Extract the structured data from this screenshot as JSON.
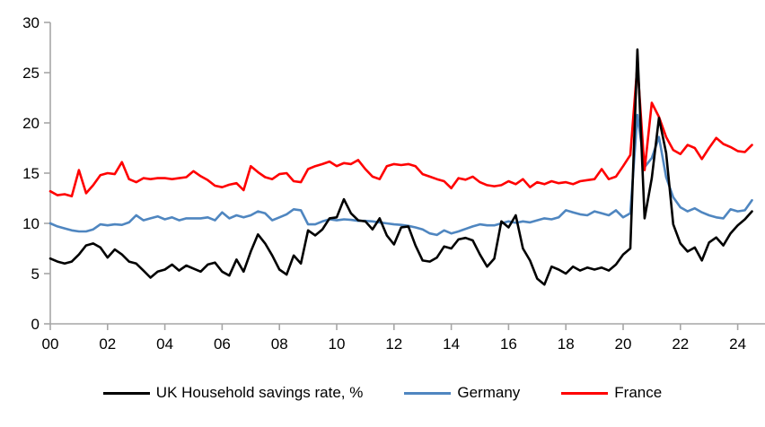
{
  "chart_data": {
    "type": "line",
    "title": "",
    "xlabel": "",
    "ylabel": "",
    "grid": false,
    "legend_position": "bottom-center",
    "background_color": "#ffffff",
    "axis_color": "#a6a6a6",
    "tick_label_color": "#000000",
    "x_start_year": 2000,
    "x_step_years": 0.25,
    "x_axis_tick_years": [
      0,
      2,
      4,
      6,
      8,
      10,
      12,
      14,
      16,
      18,
      20,
      22,
      24
    ],
    "x_tick_labels": [
      "00",
      "02",
      "04",
      "06",
      "08",
      "10",
      "12",
      "14",
      "16",
      "18",
      "20",
      "22",
      "24"
    ],
    "y_ticks": [
      0,
      5,
      10,
      15,
      20,
      25,
      30
    ],
    "ylim": [
      0,
      30
    ],
    "xlim_years": [
      0,
      25
    ],
    "series": [
      {
        "key": "uk",
        "name": "UK Household savings rate, %",
        "color": "#000000",
        "values": [
          6.5,
          6.2,
          6.0,
          6.2,
          6.9,
          7.8,
          8.0,
          7.6,
          6.6,
          7.4,
          6.9,
          6.2,
          6.0,
          5.3,
          4.6,
          5.2,
          5.4,
          5.9,
          5.3,
          5.8,
          5.5,
          5.2,
          5.9,
          6.1,
          5.2,
          4.8,
          6.4,
          5.2,
          7.2,
          8.9,
          8.0,
          6.8,
          5.4,
          4.9,
          6.8,
          6.0,
          9.3,
          8.8,
          9.4,
          10.5,
          10.6,
          12.4,
          11.0,
          10.3,
          10.2,
          9.4,
          10.5,
          8.8,
          7.9,
          9.6,
          9.7,
          7.8,
          6.3,
          6.2,
          6.6,
          7.7,
          7.5,
          8.4,
          8.55,
          8.3,
          6.9,
          5.7,
          6.5,
          10.2,
          9.6,
          10.8,
          7.5,
          6.3,
          4.5,
          3.9,
          5.7,
          5.4,
          5.0,
          5.7,
          5.3,
          5.6,
          5.4,
          5.6,
          5.3,
          5.9,
          6.9,
          7.5,
          27.3,
          10.5,
          14.5,
          20.5,
          17.0,
          9.9,
          8.0,
          7.2,
          7.6,
          6.3,
          8.1,
          8.6,
          7.8,
          9.0,
          9.8,
          10.4,
          11.2
        ]
      },
      {
        "key": "germany",
        "name": "Germany",
        "color": "#4f86c0",
        "values": [
          10.0,
          9.7,
          9.5,
          9.3,
          9.2,
          9.2,
          9.4,
          9.9,
          9.8,
          9.9,
          9.85,
          10.1,
          10.8,
          10.3,
          10.5,
          10.7,
          10.4,
          10.6,
          10.3,
          10.5,
          10.5,
          10.5,
          10.6,
          10.3,
          11.1,
          10.5,
          10.8,
          10.6,
          10.8,
          11.2,
          11.0,
          10.3,
          10.6,
          10.9,
          11.4,
          11.3,
          9.9,
          9.9,
          10.2,
          10.4,
          10.3,
          10.4,
          10.35,
          10.25,
          10.25,
          10.2,
          10.1,
          10.0,
          9.9,
          9.85,
          9.75,
          9.6,
          9.4,
          9.0,
          8.85,
          9.3,
          9.0,
          9.2,
          9.45,
          9.7,
          9.9,
          9.8,
          9.8,
          10.0,
          10.2,
          10.05,
          10.2,
          10.1,
          10.3,
          10.5,
          10.4,
          10.6,
          11.3,
          11.1,
          10.9,
          10.8,
          11.2,
          11.0,
          10.8,
          11.3,
          10.6,
          11.0,
          20.8,
          15.6,
          16.5,
          18.6,
          14.6,
          12.6,
          11.6,
          11.2,
          11.5,
          11.1,
          10.8,
          10.6,
          10.5,
          11.4,
          11.2,
          11.3,
          12.3
        ]
      },
      {
        "key": "france",
        "name": "France",
        "color": "#ff0000",
        "values": [
          13.2,
          12.8,
          12.9,
          12.7,
          15.3,
          13.0,
          13.8,
          14.8,
          15.0,
          14.9,
          16.1,
          14.4,
          14.1,
          14.5,
          14.4,
          14.5,
          14.5,
          14.4,
          14.5,
          14.6,
          15.2,
          14.7,
          14.3,
          13.75,
          13.6,
          13.85,
          14.0,
          13.3,
          15.7,
          15.1,
          14.6,
          14.4,
          14.9,
          15.0,
          14.2,
          14.1,
          15.4,
          15.7,
          15.9,
          16.15,
          15.7,
          16.0,
          15.9,
          16.3,
          15.4,
          14.65,
          14.4,
          15.7,
          15.9,
          15.8,
          15.9,
          15.7,
          14.9,
          14.65,
          14.4,
          14.2,
          13.5,
          14.5,
          14.35,
          14.65,
          14.1,
          13.8,
          13.7,
          13.8,
          14.2,
          13.9,
          14.4,
          13.6,
          14.1,
          13.9,
          14.2,
          14.0,
          14.1,
          13.9,
          14.2,
          14.3,
          14.4,
          15.4,
          14.4,
          14.65,
          15.7,
          16.8,
          25.8,
          15.3,
          22.0,
          20.6,
          18.6,
          17.3,
          16.9,
          17.8,
          17.5,
          16.4,
          17.5,
          18.5,
          17.9,
          17.6,
          17.2,
          17.1,
          17.8
        ]
      }
    ]
  }
}
